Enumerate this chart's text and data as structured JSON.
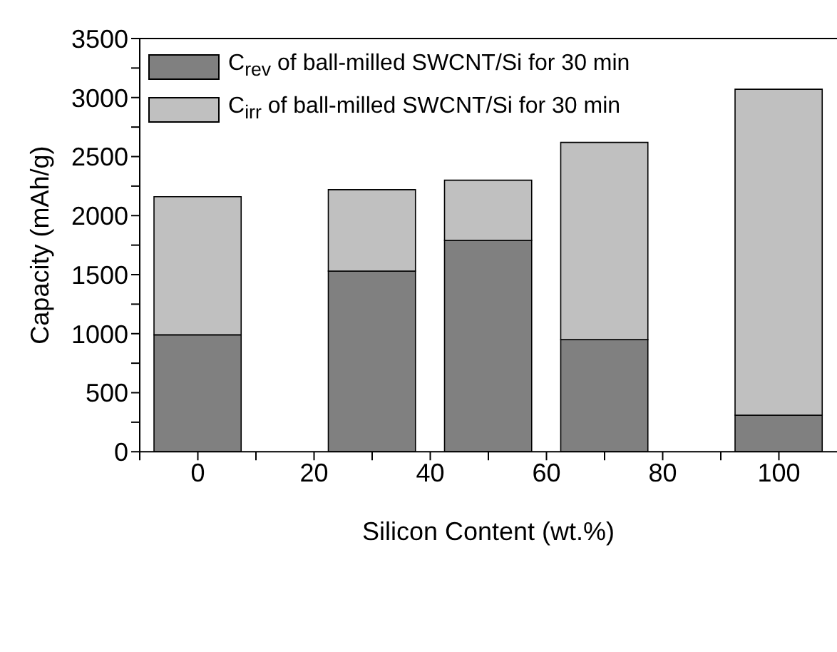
{
  "chart_data": {
    "type": "bar",
    "stacked": true,
    "xlabel": "Silicon Content (wt.%)",
    "ylabel": "Capacity (mAh/g)",
    "x": [
      0,
      30,
      50,
      70,
      100
    ],
    "series": [
      {
        "name": "C$_{rev}$ of ball-milled SWCNT/Si for 30 min",
        "color": "#808080",
        "values": [
          990,
          1530,
          1790,
          950,
          310
        ]
      },
      {
        "name": "C$_{irr}$ of ball-milled SWCNT/Si for 30 min",
        "color": "#c0c0c0",
        "values": [
          1170,
          690,
          510,
          1670,
          2760
        ]
      }
    ],
    "xlim": [
      -10,
      110
    ],
    "xticks": [
      {
        "value": -10,
        "label": null
      },
      0,
      {
        "value": 10,
        "label": null
      },
      20,
      {
        "value": 30,
        "label": null
      },
      40,
      {
        "value": 50,
        "label": null
      },
      60,
      {
        "value": 70,
        "label": null
      },
      80,
      {
        "value": 90,
        "label": null
      },
      100
    ],
    "ylim": [
      0,
      3500
    ],
    "yticks": [
      0,
      {
        "value": 250,
        "label": null
      },
      500,
      {
        "value": 750,
        "label": null
      },
      1000,
      {
        "value": 1250,
        "label": null
      },
      1500,
      {
        "value": 1750,
        "label": null
      },
      2000,
      {
        "value": 2250,
        "label": null
      },
      2500,
      {
        "value": 2750,
        "label": null
      },
      3000,
      {
        "value": 3250,
        "label": null
      },
      3500
    ],
    "grid": false,
    "legend": "top left"
  }
}
